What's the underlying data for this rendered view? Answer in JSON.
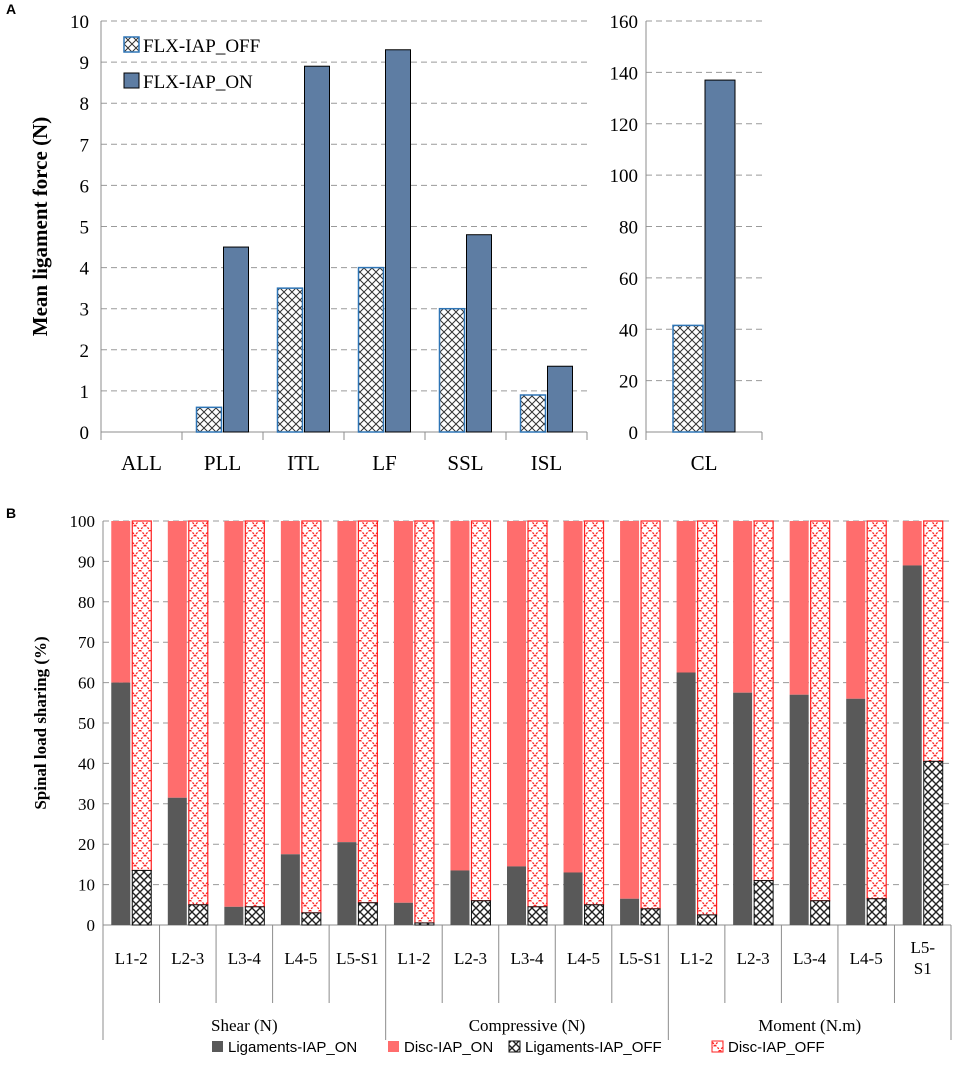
{
  "chart_data": [
    {
      "panel": "A",
      "type": "bar",
      "ylabel": "Mean ligament force (N)",
      "legend": [
        "FLX-IAP_OFF",
        "FLX-IAP_ON"
      ],
      "left_axis": {
        "ylim": [
          0,
          10
        ],
        "ticks": [
          "0",
          "1",
          "2",
          "3",
          "4",
          "5",
          "6",
          "7",
          "8",
          "9",
          "10"
        ],
        "categories": [
          "ALL",
          "PLL",
          "ITL",
          "LF",
          "SSL",
          "ISL"
        ],
        "series": [
          {
            "name": "FLX-IAP_OFF",
            "values": [
              0,
              0.6,
              3.5,
              4.0,
              3.0,
              0.9
            ]
          },
          {
            "name": "FLX-IAP_ON",
            "values": [
              0,
              4.5,
              8.9,
              9.3,
              4.8,
              1.6
            ]
          }
        ]
      },
      "right_axis": {
        "ylim": [
          0,
          160
        ],
        "ticks": [
          "0",
          "20",
          "40",
          "60",
          "80",
          "100",
          "120",
          "140",
          "160"
        ],
        "categories": [
          "CL"
        ],
        "series": [
          {
            "name": "FLX-IAP_OFF",
            "values": [
              41.5
            ]
          },
          {
            "name": "FLX-IAP_ON",
            "values": [
              137
            ]
          }
        ]
      },
      "grid": true,
      "legend_position": "top-left"
    },
    {
      "panel": "B",
      "type": "bar",
      "stacked": true,
      "ylabel": "Spinal load sharing (%)",
      "ylim": [
        0,
        100
      ],
      "ticks": [
        "0",
        "10",
        "20",
        "30",
        "40",
        "50",
        "60",
        "70",
        "80",
        "90",
        "100"
      ],
      "groups": [
        {
          "name": "Shear (N)",
          "levels": [
            "L1-2",
            "L2-3",
            "L3-4",
            "L4-5",
            "L5-S1"
          ]
        },
        {
          "name": "Compressive (N)",
          "levels": [
            "L1-2",
            "L2-3",
            "L3-4",
            "L4-5",
            "L5-S1"
          ]
        },
        {
          "name": "Moment (N.m)",
          "levels": [
            "L1-2",
            "L2-3",
            "L3-4",
            "L4-5",
            "L5-S1"
          ]
        }
      ],
      "ligaments_iap_on": [
        60,
        31.5,
        4.5,
        17.5,
        20.5,
        5.5,
        13.5,
        14.5,
        13,
        6.5,
        62.5,
        57.5,
        57,
        56,
        89
      ],
      "ligaments_iap_off": [
        13.5,
        5,
        4.5,
        3,
        5.5,
        0.5,
        6,
        4.5,
        5,
        4,
        2.5,
        11,
        6,
        6.5,
        40.5
      ],
      "legend": [
        "Ligaments-IAP_ON",
        "Disc-IAP_ON",
        "Ligaments-IAP_OFF",
        "Disc-IAP_OFF"
      ],
      "legend_position": "bottom",
      "grid": true
    }
  ],
  "colors": {
    "on_bar": "#5E7DA3",
    "off_border": "#2E75B6",
    "ligament_on": "#595959",
    "disc_on": "#FF6D6D",
    "disc_off_hatch": "#FF2020",
    "grid": "#9a9a9a",
    "axis": "#8c8c8c"
  }
}
